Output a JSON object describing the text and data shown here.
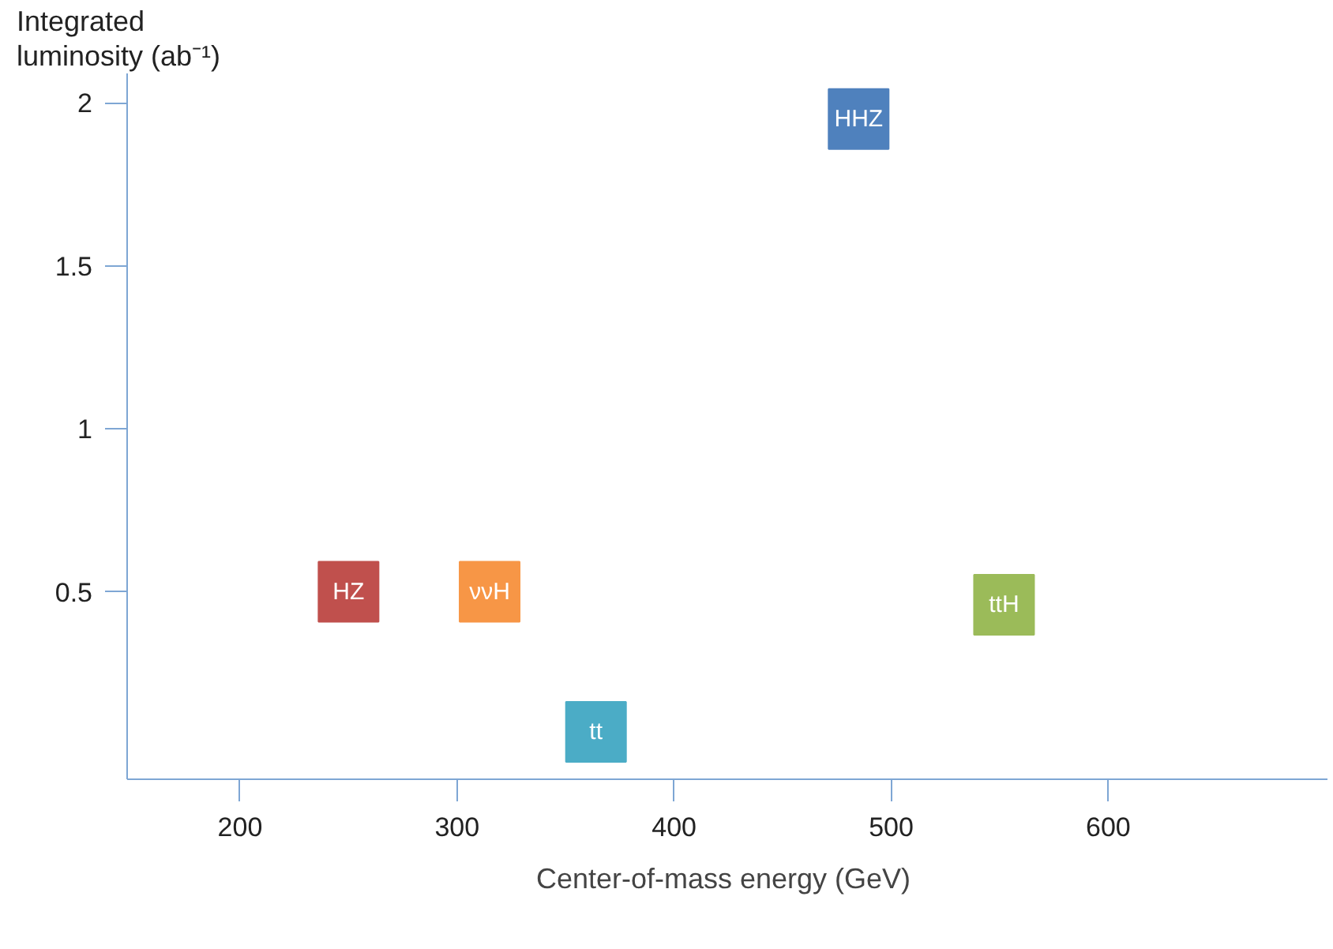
{
  "chart_data": {
    "type": "scatter",
    "marker": "square",
    "xlabel": "Center-of-mass energy  (GeV)",
    "ylabel": "Integrated luminosity (ab⁻¹)",
    "xlim": [
      148,
      701
    ],
    "ylim": [
      -0.075,
      2.09
    ],
    "xticks": [
      200,
      300,
      400,
      500,
      600
    ],
    "yticks": [
      0.5,
      1,
      1.5,
      2
    ],
    "grid": false,
    "series": [
      {
        "name": "HZ",
        "color": "#c0504d",
        "x": [
          250
        ],
        "values": [
          0.5
        ]
      },
      {
        "name": "ννH",
        "color": "#f79646",
        "x": [
          315
        ],
        "values": [
          0.5
        ]
      },
      {
        "name": "tt",
        "color": "#4bacc6",
        "x": [
          364
        ],
        "values": [
          0.07
        ]
      },
      {
        "name": "ttH",
        "color": "#9bbb59",
        "x": [
          552
        ],
        "values": [
          0.46
        ]
      },
      {
        "name": "HHZ",
        "color": "#4f81bd",
        "x": [
          485
        ],
        "values": [
          1.95
        ]
      }
    ]
  }
}
